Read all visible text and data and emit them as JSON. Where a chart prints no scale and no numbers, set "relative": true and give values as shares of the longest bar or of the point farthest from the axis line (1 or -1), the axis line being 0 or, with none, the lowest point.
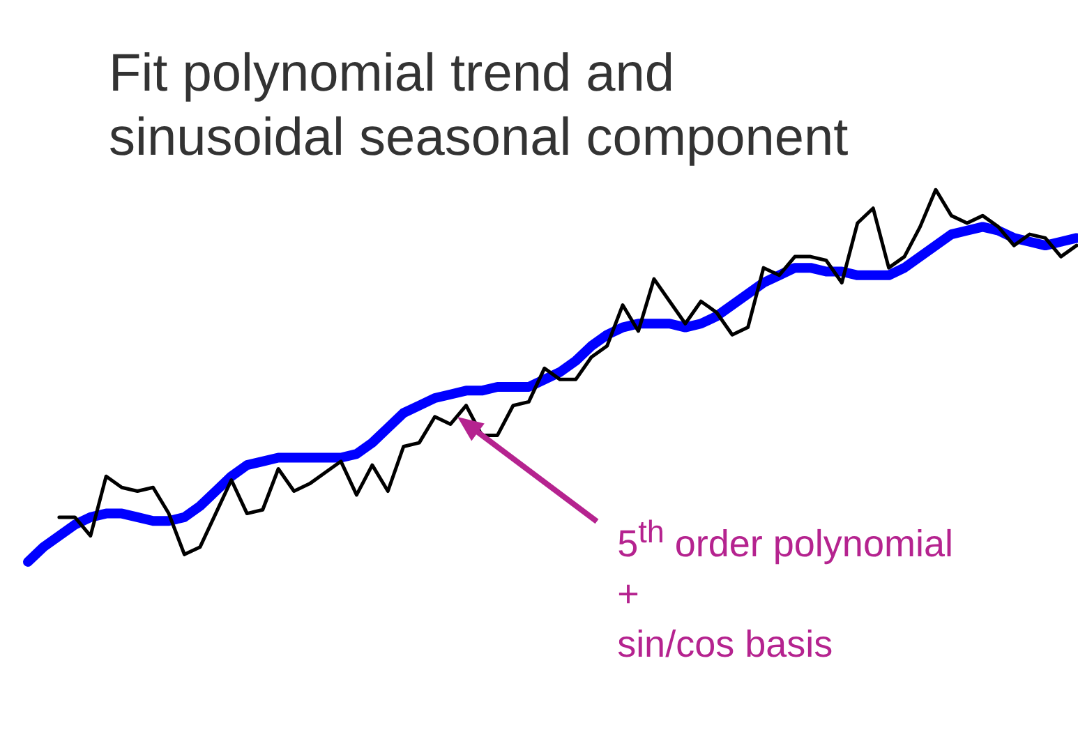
{
  "chart_data": {
    "type": "line",
    "title": "Fit polynomial trend and sinusoidal seasonal component",
    "relative": true,
    "tick_labels": false,
    "grid": false,
    "legend": false,
    "marker": "none",
    "line_style": "solid",
    "annotations": [
      "5$^{th}$ order polynomial\n+\nsin/cos basis"
    ],
    "categories": [
      null,
      null,
      null,
      null,
      null,
      null,
      null,
      null,
      null,
      null,
      null,
      null,
      null,
      null,
      null,
      null,
      null,
      null,
      null,
      null,
      null,
      null,
      null,
      null,
      null,
      null,
      null,
      null,
      null,
      null,
      null,
      null,
      null,
      null,
      null,
      null,
      null,
      null,
      null,
      null,
      null,
      null,
      null,
      null,
      null,
      null,
      null,
      null,
      null,
      null,
      null,
      null,
      null,
      null,
      null,
      null,
      null,
      null,
      null,
      null,
      null,
      null,
      null,
      null,
      null,
      null,
      null,
      null
    ],
    "series": [
      {
        "color": "#000000",
        "values": [
          null,
          null,
          0.12,
          0.12,
          0.07,
          0.23,
          0.2,
          0.19,
          0.2,
          0.13,
          0.02,
          0.04,
          0.13,
          0.22,
          0.13,
          0.14,
          0.25,
          0.19,
          0.21,
          0.24,
          0.27,
          0.18,
          0.26,
          0.19,
          0.31,
          0.32,
          0.39,
          0.37,
          0.42,
          0.34,
          0.34,
          0.42,
          0.43,
          0.52,
          0.49,
          0.49,
          0.55,
          0.58,
          0.69,
          0.62,
          0.76,
          0.7,
          0.64,
          0.7,
          0.67,
          0.61,
          0.63,
          0.79,
          0.77,
          0.82,
          0.82,
          0.81,
          0.75,
          0.91,
          0.95,
          0.79,
          0.82,
          0.9,
          1.0,
          0.93,
          0.91,
          0.93,
          0.9,
          0.85,
          0.88,
          0.87,
          0.82,
          0.85
        ]
      },
      {
        "color": "#0000ff",
        "values": [
          0.0,
          0.04,
          0.07,
          0.1,
          0.12,
          0.13,
          0.13,
          0.12,
          0.11,
          0.11,
          0.12,
          0.15,
          0.19,
          0.23,
          0.26,
          0.27,
          0.28,
          0.28,
          0.28,
          0.28,
          0.28,
          0.29,
          0.32,
          0.36,
          0.4,
          0.42,
          0.44,
          0.45,
          0.46,
          0.46,
          0.47,
          0.47,
          0.47,
          0.49,
          0.51,
          0.54,
          0.58,
          0.61,
          0.63,
          0.64,
          0.64,
          0.64,
          0.63,
          0.64,
          0.66,
          0.69,
          0.72,
          0.75,
          0.77,
          0.79,
          0.79,
          0.78,
          0.78,
          0.77,
          0.77,
          0.77,
          0.79,
          0.82,
          0.85,
          0.88,
          0.89,
          0.9,
          0.89,
          0.87,
          0.86,
          0.85,
          0.86,
          0.87
        ]
      }
    ]
  }
}
